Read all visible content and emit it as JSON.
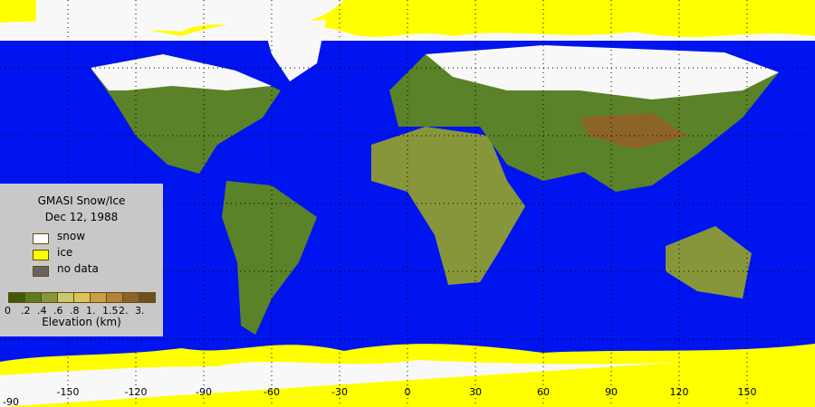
{
  "legend": {
    "title": "GMASI Snow/Ice",
    "date": "Dec 12, 1988",
    "items": [
      {
        "label": "snow",
        "color": "#ffffff"
      },
      {
        "label": "ice",
        "color": "#ffff00"
      },
      {
        "label": "no data",
        "color": "#646464"
      }
    ],
    "elevation_colors": [
      "#3c5a0a",
      "#5a7d1e",
      "#87963a",
      "#c8c870",
      "#dcc35a",
      "#c8a046",
      "#b4823c",
      "#8c6428",
      "#6e5020"
    ],
    "elevation_ticks": [
      "0",
      ".2",
      ".4",
      ".6",
      ".8",
      "1.",
      "1.5",
      "2.",
      "3."
    ],
    "elevation_label": "Elevation (km)"
  },
  "axis": {
    "lon_labels": [
      "-150",
      "-120",
      "-90",
      "-60",
      "-30",
      "0",
      "30",
      "60",
      "90",
      "120",
      "150"
    ],
    "lat_label": "-90"
  },
  "colors": {
    "ocean": "#0014f0",
    "land": "#5a8228",
    "snow": "#f8f8f8",
    "ice": "#ffff00"
  }
}
